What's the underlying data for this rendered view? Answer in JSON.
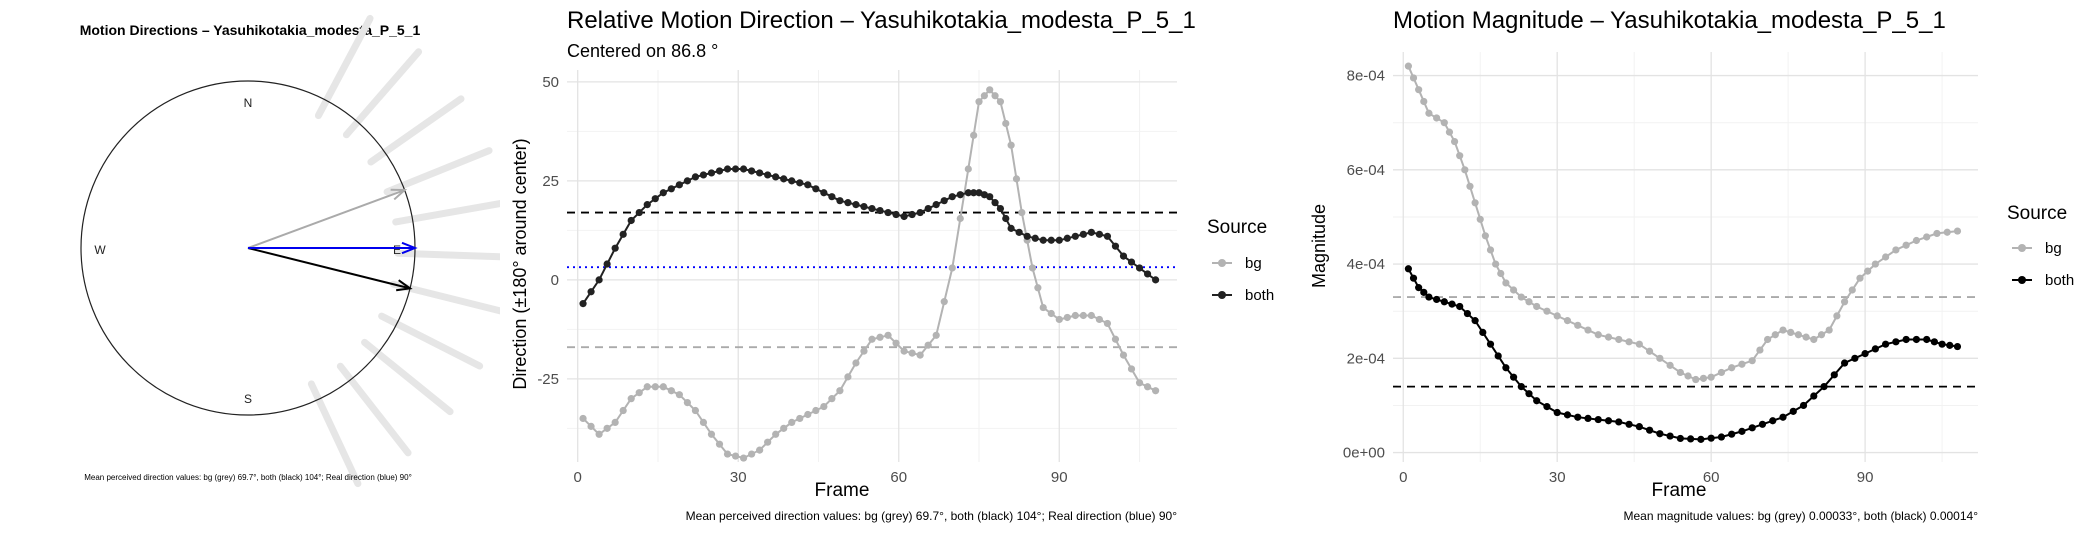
{
  "compass": {
    "title": "Motion Directions – Yasuhikotakia_modesta_P_5_1",
    "labels": {
      "n": "N",
      "s": "S",
      "e": "E",
      "w": "W"
    },
    "caption": "Mean perceived direction values: bg (grey) 69.7°, both (black) 104°; Real direction (blue) 90°",
    "arrows": [
      {
        "name": "bg",
        "angle_deg": 69.7,
        "color": "#aaaaaa"
      },
      {
        "name": "both",
        "angle_deg": 104,
        "color": "#000000"
      },
      {
        "name": "real",
        "angle_deg": 90,
        "color": "#0000ee"
      }
    ],
    "ray_angles_deg": [
      28,
      41,
      55,
      68,
      80,
      92,
      104,
      117,
      129,
      142,
      155
    ]
  },
  "direction": {
    "title": "Relative Motion Direction – Yasuhikotakia_modesta_P_5_1",
    "subtitle": "Centered on  86.8 °",
    "xlabel": "Frame",
    "ylabel": "Direction (±180° around center)",
    "caption": "Mean perceived direction values: bg (grey) 69.7°, both (black) 104°; Real direction (blue) 90°",
    "legend_title": "Source",
    "legend_items": [
      "bg",
      "both"
    ],
    "xticks": [
      "0",
      "30",
      "60",
      "90"
    ],
    "yticks": [
      "50",
      "25",
      "0",
      "-25"
    ]
  },
  "magnitude": {
    "title": "Motion Magnitude – Yasuhikotakia_modesta_P_5_1",
    "xlabel": "Frame",
    "ylabel": "Magnitude",
    "caption": "Mean magnitude values: bg (grey) 0.00033°, both (black) 0.00014°",
    "legend_title": "Source",
    "legend_items": [
      "bg",
      "both"
    ],
    "xticks": [
      "0",
      "30",
      "60",
      "90"
    ],
    "yticks": [
      "8e-04",
      "6e-04",
      "4e-04",
      "2e-04",
      "0e+00"
    ]
  },
  "chart_data": [
    {
      "type": "line",
      "title": "Relative Motion Direction – Yasuhikotakia_modesta_P_5_1",
      "subtitle": "Centered on  86.8 °",
      "xlabel": "Frame",
      "ylabel": "Direction (±180° around center)",
      "xlim": [
        -2,
        112
      ],
      "ylim": [
        -46,
        53
      ],
      "grid": true,
      "legend": "right",
      "series": [
        {
          "name": "bg",
          "color": "#b3b3b3",
          "points": [
            [
              1,
              -35
            ],
            [
              4,
              -39
            ],
            [
              7,
              -36
            ],
            [
              10,
              -30
            ],
            [
              13,
              -27
            ],
            [
              16,
              -27
            ],
            [
              19,
              -29
            ],
            [
              22,
              -33
            ],
            [
              25,
              -39
            ],
            [
              28,
              -44
            ],
            [
              31,
              -45
            ],
            [
              34,
              -43
            ],
            [
              37,
              -39
            ],
            [
              40,
              -36
            ],
            [
              43,
              -34
            ],
            [
              46,
              -32
            ],
            [
              49,
              -28
            ],
            [
              52,
              -21
            ],
            [
              55,
              -15
            ],
            [
              58,
              -14
            ],
            [
              61,
              -18
            ],
            [
              64,
              -19
            ],
            [
              67,
              -14
            ],
            [
              70,
              3
            ],
            [
              73,
              28
            ],
            [
              75,
              45
            ],
            [
              77,
              48
            ],
            [
              79,
              45
            ],
            [
              81,
              34
            ],
            [
              83,
              17
            ],
            [
              85,
              3
            ],
            [
              87,
              -7
            ],
            [
              90,
              -10
            ],
            [
              93,
              -9
            ],
            [
              96,
              -9
            ],
            [
              99,
              -11
            ],
            [
              102,
              -19
            ],
            [
              105,
              -26
            ],
            [
              108,
              -28
            ]
          ]
        },
        {
          "name": "both",
          "color": "#222222",
          "points": [
            [
              1,
              -6
            ],
            [
              4,
              0
            ],
            [
              7,
              8
            ],
            [
              10,
              15
            ],
            [
              13,
              19
            ],
            [
              16,
              22
            ],
            [
              19,
              24
            ],
            [
              22,
              26
            ],
            [
              25,
              27
            ],
            [
              28,
              28
            ],
            [
              31,
              28
            ],
            [
              34,
              27
            ],
            [
              37,
              26
            ],
            [
              40,
              25
            ],
            [
              43,
              24
            ],
            [
              46,
              22
            ],
            [
              49,
              20
            ],
            [
              52,
              19
            ],
            [
              55,
              18
            ],
            [
              58,
              17
            ],
            [
              61,
              16
            ],
            [
              64,
              17
            ],
            [
              67,
              19
            ],
            [
              70,
              21
            ],
            [
              73,
              22
            ],
            [
              75,
              22
            ],
            [
              77,
              21
            ],
            [
              79,
              18
            ],
            [
              81,
              13
            ],
            [
              84,
              11
            ],
            [
              87,
              10
            ],
            [
              90,
              10
            ],
            [
              93,
              11
            ],
            [
              96,
              12
            ],
            [
              99,
              11
            ],
            [
              102,
              6
            ],
            [
              105,
              3
            ],
            [
              108,
              0
            ]
          ]
        }
      ],
      "reference_lines": [
        {
          "name": "both mean",
          "y": 17,
          "color": "#000000",
          "style": "dashed"
        },
        {
          "name": "bg mean",
          "y": -17,
          "color": "#aaaaaa",
          "style": "dashed"
        },
        {
          "name": "real direction",
          "y": 3.2,
          "color": "#0000ff",
          "style": "dotted"
        }
      ]
    },
    {
      "type": "line",
      "title": "Motion Magnitude – Yasuhikotakia_modesta_P_5_1",
      "xlabel": "Frame",
      "ylabel": "Magnitude",
      "xlim": [
        -2,
        112
      ],
      "ylim": [
        -2e-05,
        0.00085
      ],
      "grid": true,
      "legend": "right",
      "series": [
        {
          "name": "bg",
          "color": "#b3b3b3",
          "points": [
            [
              1,
              0.00082
            ],
            [
              3,
              0.00077
            ],
            [
              5,
              0.00072
            ],
            [
              8,
              0.0007
            ],
            [
              10,
              0.00066
            ],
            [
              12,
              0.0006
            ],
            [
              14,
              0.00053
            ],
            [
              16,
              0.00046
            ],
            [
              18,
              0.0004
            ],
            [
              20,
              0.00036
            ],
            [
              23,
              0.00033
            ],
            [
              26,
              0.00031
            ],
            [
              30,
              0.00029
            ],
            [
              34,
              0.00027
            ],
            [
              38,
              0.00025
            ],
            [
              42,
              0.00024
            ],
            [
              46,
              0.00023
            ],
            [
              50,
              0.0002
            ],
            [
              54,
              0.00017
            ],
            [
              57,
              0.000155
            ],
            [
              60,
              0.00016
            ],
            [
              64,
              0.00018
            ],
            [
              68,
              0.000195
            ],
            [
              71,
              0.00024
            ],
            [
              74,
              0.00026
            ],
            [
              77,
              0.00025
            ],
            [
              80,
              0.00024
            ],
            [
              83,
              0.00026
            ],
            [
              86,
              0.00032
            ],
            [
              89,
              0.00037
            ],
            [
              92,
              0.0004
            ],
            [
              96,
              0.00043
            ],
            [
              100,
              0.00045
            ],
            [
              104,
              0.000465
            ],
            [
              108,
              0.00047
            ]
          ]
        },
        {
          "name": "both",
          "color": "#000000",
          "points": [
            [
              1,
              0.00039
            ],
            [
              3,
              0.00035
            ],
            [
              5,
              0.00033
            ],
            [
              8,
              0.00032
            ],
            [
              11,
              0.00031
            ],
            [
              14,
              0.00028
            ],
            [
              17,
              0.00023
            ],
            [
              20,
              0.00018
            ],
            [
              23,
              0.00014
            ],
            [
              26,
              0.00011
            ],
            [
              30,
              8.5e-05
            ],
            [
              34,
              7.5e-05
            ],
            [
              38,
              7e-05
            ],
            [
              42,
              6.5e-05
            ],
            [
              46,
              5.5e-05
            ],
            [
              50,
              4e-05
            ],
            [
              54,
              3e-05
            ],
            [
              58,
              2.8e-05
            ],
            [
              62,
              3.3e-05
            ],
            [
              66,
              4.5e-05
            ],
            [
              70,
              6e-05
            ],
            [
              74,
              7.5e-05
            ],
            [
              78,
              0.0001
            ],
            [
              82,
              0.00014
            ],
            [
              86,
              0.00019
            ],
            [
              90,
              0.00021
            ],
            [
              94,
              0.00023
            ],
            [
              98,
              0.00024
            ],
            [
              102,
              0.00024
            ],
            [
              105,
              0.00023
            ],
            [
              108,
              0.000225
            ]
          ]
        }
      ],
      "reference_lines": [
        {
          "name": "bg mean",
          "y": 0.00033,
          "color": "#aaaaaa",
          "style": "dashed"
        },
        {
          "name": "both mean",
          "y": 0.00014,
          "color": "#000000",
          "style": "dashed"
        }
      ]
    }
  ]
}
